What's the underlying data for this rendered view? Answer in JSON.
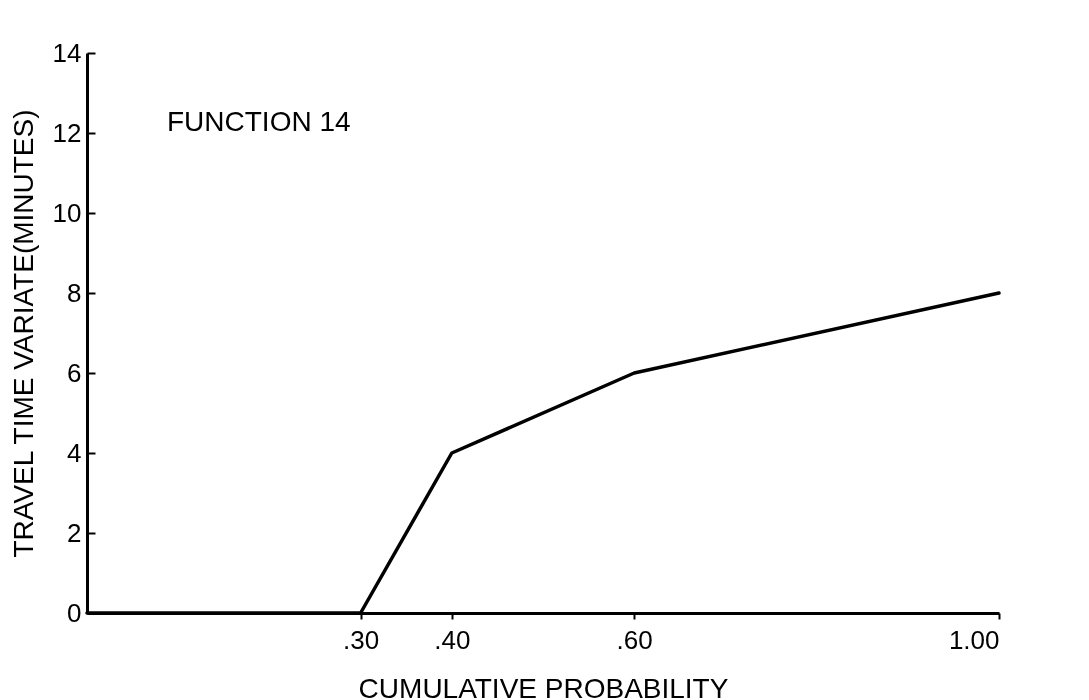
{
  "chart_data": {
    "type": "line",
    "xlabel": "CUMULATIVE PROBABILITY",
    "ylabel": "TRAVEL TIME VARIATE(MINUTES)",
    "annotations": [
      "FUNCTION 14"
    ],
    "x": [
      0,
      0.3,
      0.4,
      0.6,
      1.0
    ],
    "series": [
      {
        "color": "#000000",
        "values": [
          0,
          0,
          4,
          6,
          8
        ]
      }
    ],
    "xlim": [
      0,
      1.0
    ],
    "xticks": [
      {
        "value": 0.3,
        "label": ".30"
      },
      {
        "value": 0.4,
        "label": ".40"
      },
      {
        "value": 0.6,
        "label": ".60"
      },
      {
        "value": 1.0,
        "label": "1.00"
      }
    ],
    "ylim": [
      0,
      14
    ],
    "yticks": [
      0,
      2,
      4,
      6,
      8,
      10,
      12,
      14
    ],
    "grid": false,
    "marker": "none",
    "line_style": "solid"
  }
}
